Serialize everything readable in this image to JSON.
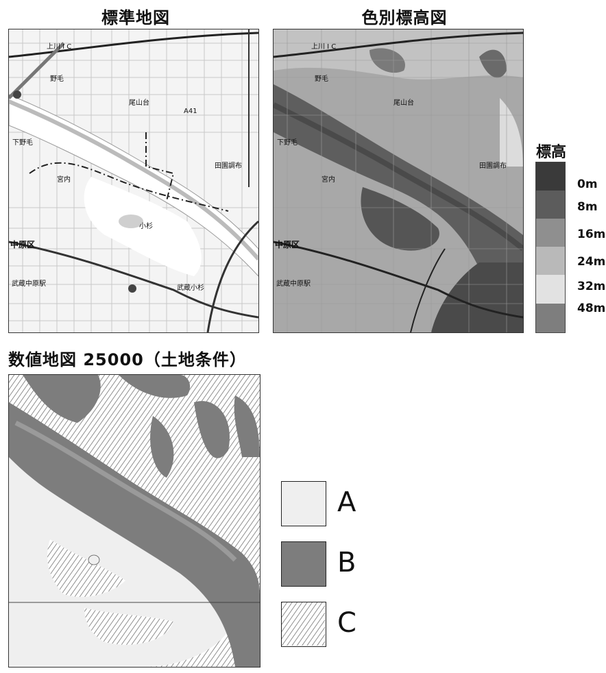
{
  "titles": {
    "standard_map": "標準地図",
    "elevation_map": "色別標高図",
    "land_condition_map": "数値地図 25000（土地条件）"
  },
  "elevation_legend": {
    "title": "標高",
    "ticks": [
      "0m",
      "8m",
      "16m",
      "24m",
      "32m",
      "48m"
    ],
    "colors": [
      "#3a3a3a",
      "#5c5c5c",
      "#8f8f8f",
      "#b9b9b9",
      "#e2e2e2",
      "#7e7e7e"
    ]
  },
  "land_classes": [
    {
      "label": "A",
      "fill": "#efefef"
    },
    {
      "label": "B",
      "fill": "#7d7d7d"
    },
    {
      "label": "C",
      "fill": "hatch"
    }
  ],
  "map_labels": {
    "ic": "上川 I C",
    "nogo": "野毛",
    "oyamadai": "尾山台",
    "shimonoge": "下野毛",
    "miyauchi": "宮内",
    "kosugi": "小杉",
    "nakahara_ku": "中原区",
    "den_en": "田園調布",
    "musashi_nakahara": "武蔵中原駅",
    "musashi_kosugi": "武蔵小杉",
    "route": "A41"
  }
}
